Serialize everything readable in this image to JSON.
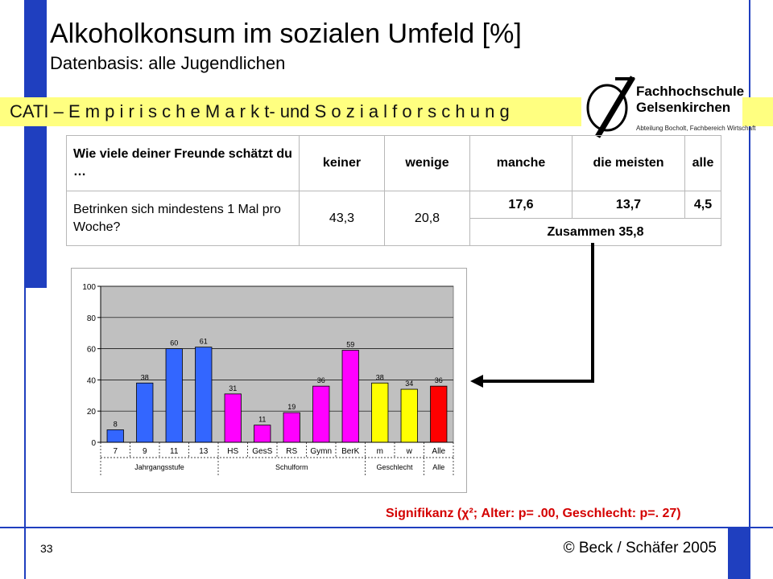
{
  "header": {
    "title": "Alkoholkonsum im sozialen Umfeld  [%]",
    "subtitle": "Datenbasis: alle Jugendlichen",
    "banner": "CATI – E m p i r i s c h e  M a r k t- und S o z i a l f o r s c h u n g"
  },
  "logo": {
    "name_line1": "Fachhochschule",
    "name_line2": "Gelsenkirchen",
    "department": "Abteilung Bocholt, Fachbereich Wirtschaft"
  },
  "table": {
    "question_header": "Wie viele deiner Freunde schätzt du …",
    "columns": [
      "keiner",
      "wenige",
      "manche",
      "die meisten",
      "alle"
    ],
    "row_label": "Betrinken sich mindestens 1 Mal pro Woche?",
    "values": [
      "43,3",
      "20,8",
      "17,6",
      "13,7",
      "4,5"
    ],
    "combined": "Zusammen 35,8"
  },
  "chart_data": {
    "type": "bar",
    "categories": [
      "7",
      "9",
      "11",
      "13",
      "HS",
      "GesS",
      "RS",
      "Gymn",
      "BerK",
      "m",
      "w",
      "Alle"
    ],
    "values": [
      8,
      38,
      60,
      61,
      31,
      11,
      19,
      36,
      59,
      38,
      34,
      36
    ],
    "groups": [
      {
        "label": "Jahrgangsstufe",
        "count": 4
      },
      {
        "label": "Schulform",
        "count": 5
      },
      {
        "label": "Geschlecht",
        "count": 2
      },
      {
        "label": "Alle",
        "count": 1
      }
    ],
    "colors": [
      "#3366ff",
      "#3366ff",
      "#3366ff",
      "#3366ff",
      "#ff00ff",
      "#ff00ff",
      "#ff00ff",
      "#ff00ff",
      "#ff00ff",
      "#ffff00",
      "#ffff00",
      "#ff0000"
    ],
    "ylim": [
      0,
      100
    ],
    "yticks": [
      0,
      20,
      40,
      60,
      80,
      100
    ],
    "plot_background": "#c0c0c0",
    "grid": true,
    "data_labels": true
  },
  "significance": "Signifikanz (χ²; Alter: p= .00, Geschlecht: p=. 27)",
  "footer": {
    "slide_number": "33",
    "copyright": "© Beck / Schäfer 2005"
  }
}
